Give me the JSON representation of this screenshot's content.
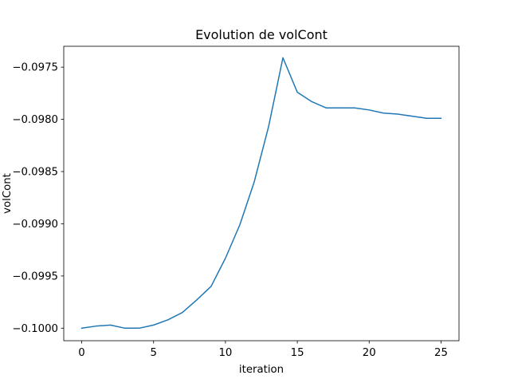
{
  "chart_data": {
    "type": "line",
    "title": "Evolution de volCont",
    "xlabel": "iteration",
    "ylabel": "volCont",
    "xlim": [
      -1.25,
      26.25
    ],
    "ylim": [
      -0.10012,
      -0.0973
    ],
    "xticks": [
      0,
      5,
      10,
      15,
      20,
      25
    ],
    "xtick_labels": [
      "0",
      "5",
      "10",
      "15",
      "20",
      "25"
    ],
    "yticks": [
      -0.1,
      -0.0995,
      -0.099,
      -0.0985,
      -0.098,
      -0.0975
    ],
    "ytick_labels": [
      "−0.1000",
      "−0.0995",
      "−0.0990",
      "−0.0985",
      "−0.0980",
      "−0.0975"
    ],
    "grid": false,
    "series": [
      {
        "color": "#1f77b4",
        "x": [
          0,
          1,
          2,
          3,
          4,
          5,
          6,
          7,
          8,
          9,
          10,
          11,
          12,
          13,
          14,
          15,
          16,
          17,
          18,
          19,
          20,
          21,
          22,
          23,
          24,
          25
        ],
        "y": [
          -0.1,
          -0.09998,
          -0.09997,
          -0.1,
          -0.1,
          -0.09997,
          -0.09992,
          -0.09985,
          -0.09973,
          -0.0996,
          -0.09933,
          -0.09901,
          -0.0986,
          -0.09807,
          -0.09741,
          -0.09774,
          -0.09783,
          -0.09789,
          -0.09789,
          -0.09789,
          -0.09791,
          -0.09794,
          -0.09795,
          -0.09797,
          -0.09799,
          -0.09799
        ]
      }
    ]
  }
}
